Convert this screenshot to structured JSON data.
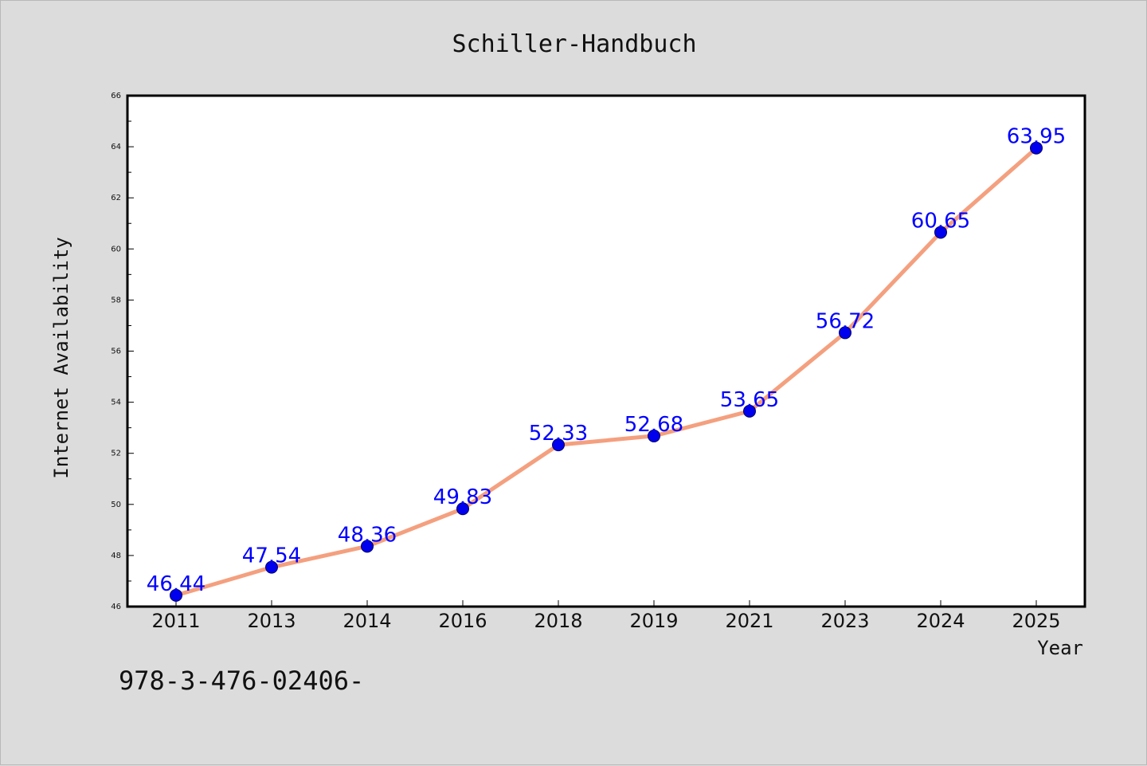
{
  "chart_data": {
    "type": "line",
    "title": "Schiller-Handbuch",
    "xlabel": "Year",
    "ylabel": "Internet Availability",
    "categories": [
      "2011",
      "2013",
      "2014",
      "2016",
      "2018",
      "2019",
      "2021",
      "2023",
      "2024",
      "2025"
    ],
    "series": [
      {
        "values": [
          46.44,
          47.54,
          48.36,
          49.83,
          52.33,
          52.68,
          53.65,
          56.72,
          60.65,
          63.95
        ]
      }
    ],
    "data_labels": [
      "46.44",
      "47.54",
      "48.36",
      "49.83",
      "52.33",
      "52.68",
      "53.65",
      "56.72",
      "60.65",
      "63.95"
    ],
    "ylim": [
      46,
      66
    ],
    "yticks": [
      "46",
      "48",
      "50",
      "52",
      "54",
      "56",
      "58",
      "60",
      "62",
      "64",
      "66"
    ],
    "grid": false,
    "legend": "none",
    "colors": {
      "line": "#f4a07f",
      "marker": "#0000ee",
      "label": "#0000ff",
      "background": "#dcdcdc",
      "plot": "#ffffff"
    },
    "annotation": "978-3-476-02406-"
  }
}
